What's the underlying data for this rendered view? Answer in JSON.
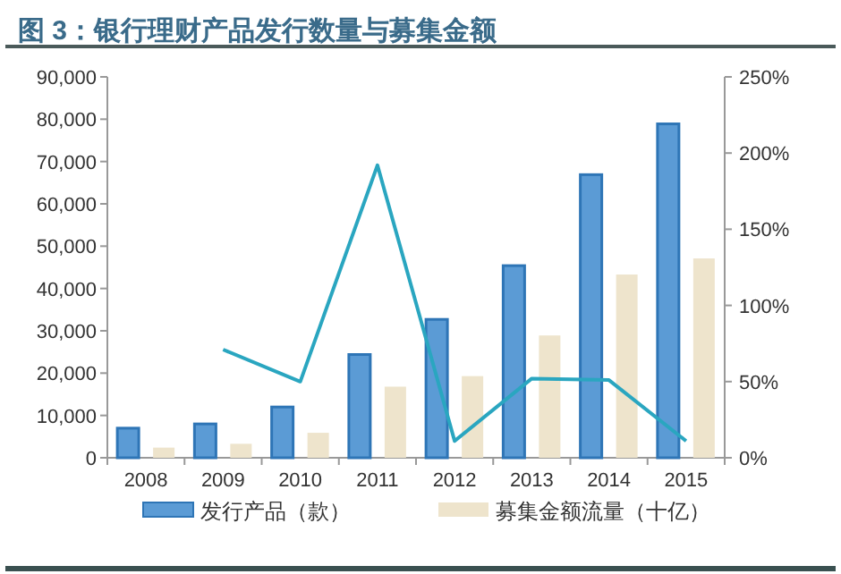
{
  "chart_data": {
    "type": "bar",
    "title": "图 3：银行理财产品发行数量与募集金额",
    "categories": [
      "2008",
      "2009",
      "2010",
      "2011",
      "2012",
      "2013",
      "2014",
      "2015"
    ],
    "series": [
      {
        "name": "发行产品（款）",
        "color": "#5b9bd5",
        "values": [
          7000,
          8000,
          12000,
          24400,
          32700,
          45400,
          66900,
          78900
        ]
      },
      {
        "name": "募集金额流量（十亿）",
        "color": "#eee4cc",
        "values": [
          2400,
          3300,
          5900,
          16800,
          19300,
          28900,
          43300,
          47100
        ]
      },
      {
        "type": "line",
        "axis": "y2",
        "color": "#2aa6c0",
        "values": [
          null,
          71,
          50,
          192,
          11,
          52,
          51,
          11
        ]
      }
    ],
    "ylim": [
      0,
      90000
    ],
    "yticks": [
      0,
      {
        "value": 10000,
        "label": "10,000"
      },
      {
        "value": 20000,
        "label": "20,000"
      },
      {
        "value": 30000,
        "label": "30,000"
      },
      {
        "value": 40000,
        "label": "40,000"
      },
      {
        "value": 50000,
        "label": "50,000"
      },
      {
        "value": 60000,
        "label": "60,000"
      },
      {
        "value": 70000,
        "label": "70,000"
      },
      {
        "value": 80000,
        "label": "80,000"
      },
      {
        "value": 90000,
        "label": "90,000"
      }
    ],
    "y2lim": [
      0,
      250
    ],
    "y2ticks": [
      {
        "value": 0,
        "label": "0%"
      },
      {
        "value": 50,
        "label": "50%"
      },
      {
        "value": 100,
        "label": "100%"
      },
      {
        "value": 150,
        "label": "150%"
      },
      {
        "value": 200,
        "label": "200%"
      },
      {
        "value": 250,
        "label": "250%"
      }
    ],
    "legend": "bottom"
  }
}
